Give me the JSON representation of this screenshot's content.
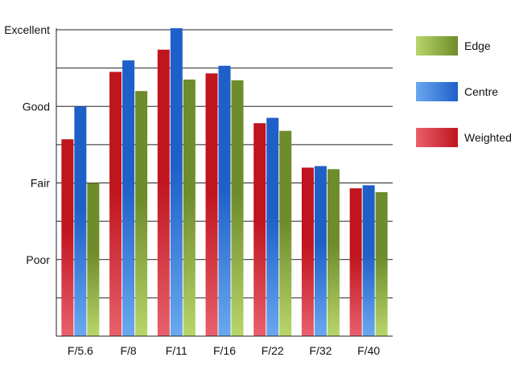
{
  "chart_data": {
    "type": "bar",
    "categories": [
      "F/5.6",
      "F/8",
      "F/11",
      "F/16",
      "F/22",
      "F/32",
      "F/40"
    ],
    "y_ticks": [
      {
        "value": 1,
        "label": "Poor"
      },
      {
        "value": 2,
        "label": "Fair"
      },
      {
        "value": 3,
        "label": "Good"
      },
      {
        "value": 4,
        "label": "Excellent"
      }
    ],
    "ylim": [
      0,
      4
    ],
    "grid": true,
    "minor_grid_step": 0.5,
    "legend_position": "right",
    "series": [
      {
        "name": "Weighted",
        "color": "#c0141e",
        "color_light": "#e8606c",
        "values": [
          2.57,
          3.45,
          3.74,
          3.43,
          2.78,
          2.2,
          1.93
        ]
      },
      {
        "name": "Centre",
        "color": "#1f5fc8",
        "color_light": "#6aa8f0",
        "values": [
          3.0,
          3.6,
          4.02,
          3.53,
          2.85,
          2.22,
          1.97
        ]
      },
      {
        "name": "Edge",
        "color": "#6e8c2a",
        "color_light": "#b8d66a",
        "values": [
          2.0,
          3.2,
          3.35,
          3.34,
          2.68,
          2.18,
          1.88
        ]
      }
    ],
    "legend_order": [
      "Edge",
      "Centre",
      "Weighted"
    ],
    "title": "",
    "xlabel": "",
    "ylabel": ""
  }
}
